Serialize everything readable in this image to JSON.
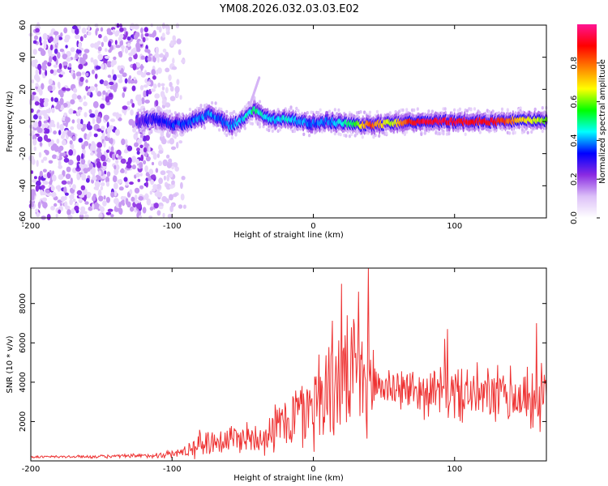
{
  "title": "YM08.2026.032.03.03.E02",
  "chart_data": [
    {
      "type": "heatmap",
      "xlabel": "Height of straight line (km)",
      "ylabel": "Frequency (Hz)",
      "xlim": [
        -200,
        165
      ],
      "ylim": [
        -60,
        60
      ],
      "xticks": [
        -200,
        -100,
        0,
        100
      ],
      "yticks": [
        -60,
        -40,
        -20,
        0,
        20,
        40,
        60
      ],
      "xtick_labels": [
        "-200",
        "-100",
        "0",
        "100"
      ],
      "ytick_labels": [
        "-60",
        "-40",
        "-20",
        "0",
        "20",
        "40",
        "60"
      ],
      "colorbar": {
        "label": "Normalized spectral amplitude",
        "range": [
          0,
          1
        ],
        "ticks": [
          0.0,
          0.2,
          0.4,
          0.6,
          0.8
        ],
        "tick_labels": [
          "0.0",
          "0.2",
          "0.4",
          "0.6",
          "0.8"
        ],
        "colors": [
          "#ffffff",
          "#dcc0f8",
          "#8a2be2",
          "#0000ff",
          "#00ffff",
          "#00ff00",
          "#ffff00",
          "#ff8000",
          "#ff0000",
          "#ff1493"
        ]
      },
      "noise_region_x": [
        -200,
        -95
      ],
      "signal_ridge": {
        "x": [
          -125,
          -110,
          -100,
          -90,
          -80,
          -72,
          -65,
          -58,
          -50,
          -42,
          -35,
          -28,
          -20,
          -10,
          0,
          10,
          20,
          30,
          40,
          55,
          70,
          90,
          110,
          130,
          150,
          165
        ],
        "y": [
          0,
          1,
          -2,
          -1,
          2,
          5,
          1,
          -3,
          2,
          7,
          3,
          1,
          2,
          0,
          -1,
          0,
          -1,
          -2,
          -2,
          -1,
          0,
          0,
          0,
          0,
          1,
          1
        ],
        "amplitude": [
          0.25,
          0.3,
          0.35,
          0.35,
          0.38,
          0.4,
          0.35,
          0.4,
          0.42,
          0.5,
          0.45,
          0.42,
          0.45,
          0.4,
          0.38,
          0.4,
          0.45,
          0.55,
          0.85,
          0.6,
          0.9,
          0.92,
          0.9,
          0.88,
          0.7,
          0.6
        ]
      },
      "spike": {
        "x": [
          -45,
          -38
        ],
        "y": [
          10,
          28
        ]
      }
    },
    {
      "type": "line",
      "xlabel": "Height of straight line (km)",
      "ylabel": "SNR (10 * v/v)",
      "xlim": [
        -200,
        165
      ],
      "ylim": [
        0,
        9800
      ],
      "xticks": [
        -200,
        -100,
        0,
        100
      ],
      "yticks": [
        2000,
        4000,
        6000,
        8000
      ],
      "xtick_labels": [
        "-200",
        "-100",
        "0",
        "100"
      ],
      "ytick_labels": [
        "2000",
        "4000",
        "6000",
        "8000"
      ],
      "series": [
        {
          "name": "SNR",
          "color": "#ee3333",
          "envelope_x": [
            -200,
            -150,
            -120,
            -100,
            -90,
            -80,
            -70,
            -60,
            -50,
            -40,
            -30,
            -20,
            -15,
            -10,
            -5,
            0,
            5,
            10,
            15,
            20,
            25,
            30,
            35,
            40,
            45,
            50,
            60,
            70,
            80,
            90,
            100,
            110,
            120,
            130,
            140,
            150,
            160,
            165
          ],
          "envelope_mean": [
            200,
            220,
            250,
            350,
            500,
            900,
            1000,
            1100,
            1200,
            1200,
            1500,
            2000,
            2200,
            2400,
            2600,
            3000,
            3400,
            3800,
            4000,
            4200,
            4100,
            4300,
            4100,
            4000,
            3900,
            3800,
            3700,
            3600,
            3500,
            3500,
            3400,
            3400,
            3300,
            3300,
            3300,
            3200,
            3200,
            3200
          ],
          "envelope_amp": [
            80,
            100,
            150,
            250,
            400,
            900,
            900,
            1000,
            1000,
            1100,
            1400,
            1800,
            2200,
            2400,
            2600,
            3000,
            3400,
            3600,
            3800,
            3800,
            3600,
            3600,
            3400,
            3000,
            2400,
            1400,
            1300,
            1400,
            1500,
            1600,
            1700,
            1800,
            1800,
            1800,
            1900,
            2000,
            2100,
            2100
          ],
          "peaks": [
            {
              "x": 20,
              "y": 9000
            },
            {
              "x": 39,
              "y": 9800
            },
            {
              "x": 32,
              "y": 8600
            },
            {
              "x": 158,
              "y": 7000
            },
            {
              "x": 95,
              "y": 6700
            },
            {
              "x": 93,
              "y": 6200
            }
          ]
        }
      ]
    }
  ]
}
